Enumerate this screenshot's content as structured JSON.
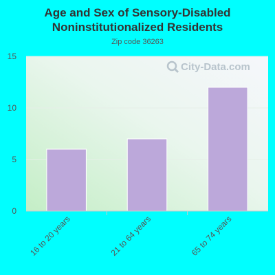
{
  "chart_data": {
    "type": "bar",
    "title_line1": "Age and Sex of Sensory-Disabled",
    "title_line2": "Noninstitutionalized Residents",
    "subtitle": "Zip code 36263",
    "categories": [
      "16 to 20 years",
      "21 to 64 years",
      "65 to 74 years"
    ],
    "values": [
      6,
      7,
      12
    ],
    "ylim": [
      0,
      15
    ],
    "yticks": [
      0,
      5,
      10,
      15
    ],
    "xlabel": "",
    "ylabel": "",
    "grid": true,
    "bar_color": "#bca8da",
    "background_color": "#00ffff"
  },
  "watermark": {
    "text": "City-Data.com",
    "icon": "magnifier-icon"
  }
}
